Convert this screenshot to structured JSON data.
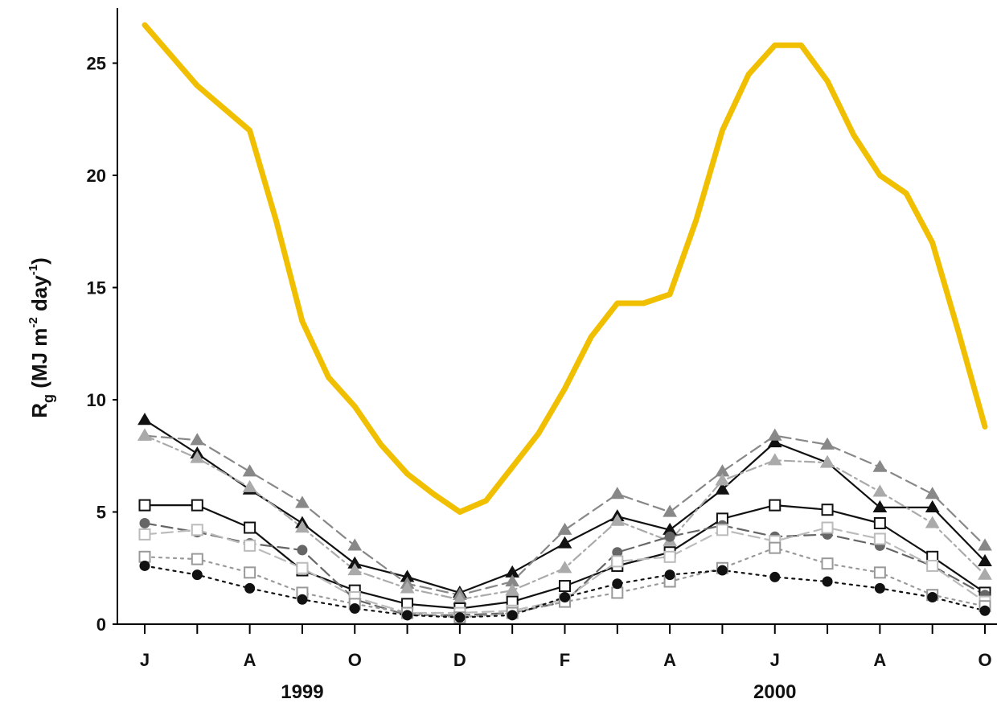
{
  "chart_data": {
    "type": "line",
    "ylabel": "Rg (MJ m-2 day-1)",
    "ylabel_parts": {
      "main": "R",
      "sub": "g",
      "a": " (MJ m",
      "sup1": "-2",
      "b": " day",
      "sup2": "-1",
      "c": ")"
    },
    "ylim": [
      0,
      27
    ],
    "yticks": [
      0,
      5,
      10,
      15,
      20,
      25
    ],
    "xlim": [
      0,
      16
    ],
    "x_tick_positions": [
      0,
      1,
      2,
      3,
      4,
      5,
      6,
      7,
      8,
      9,
      10,
      11,
      12,
      13,
      14,
      15,
      16
    ],
    "x_tick_labels": [
      {
        "x": 0,
        "label": "J"
      },
      {
        "x": 2,
        "label": "A"
      },
      {
        "x": 4,
        "label": "O"
      },
      {
        "x": 6,
        "label": "D"
      },
      {
        "x": 8,
        "label": "F"
      },
      {
        "x": 10,
        "label": "A"
      },
      {
        "x": 12,
        "label": "J"
      },
      {
        "x": 14,
        "label": "A"
      },
      {
        "x": 16,
        "label": "O"
      }
    ],
    "year_labels": [
      {
        "x": 3,
        "label": "1999"
      },
      {
        "x": 12,
        "label": "2000"
      }
    ],
    "grid": false,
    "legend": "none",
    "series": [
      {
        "style": "incident",
        "color": "#f0c000",
        "x": [
          0,
          1,
          2,
          2.5,
          3,
          3.5,
          4,
          4.5,
          5,
          5.5,
          6,
          6.5,
          7,
          7.5,
          8,
          8.5,
          9,
          9.5,
          10,
          10.5,
          11,
          11.5,
          12,
          12.5,
          13,
          13.5,
          14,
          14.5,
          15,
          15.5,
          16
        ],
        "values": [
          26.7,
          24.0,
          22.0,
          18.0,
          13.5,
          11.0,
          9.7,
          8.0,
          6.7,
          5.8,
          5.0,
          5.5,
          7.0,
          8.5,
          10.5,
          12.8,
          14.3,
          14.3,
          14.7,
          18.0,
          22.0,
          24.5,
          25.8,
          25.8,
          24.2,
          21.8,
          20.0,
          19.2,
          17.0,
          13.0,
          8.8
        ]
      },
      {
        "style": "solid",
        "color": "#111111",
        "marker": "triangle-filled",
        "x": [
          0,
          1,
          2,
          3,
          4,
          5,
          6,
          7,
          8,
          9,
          10,
          11,
          12,
          13,
          14,
          15,
          16
        ],
        "values": [
          9.1,
          7.6,
          6.0,
          4.5,
          2.7,
          2.1,
          1.4,
          2.3,
          3.6,
          4.8,
          4.2,
          6.0,
          8.1,
          7.2,
          5.2,
          5.2,
          2.8
        ]
      },
      {
        "style": "dashed",
        "color": "#888888",
        "marker": "triangle-gray",
        "x": [
          0,
          1,
          2,
          3,
          4,
          5,
          6,
          7,
          8,
          9,
          10,
          11,
          12,
          13,
          14,
          15,
          16
        ],
        "values": [
          8.4,
          8.2,
          6.8,
          5.4,
          3.5,
          1.8,
          1.3,
          1.9,
          4.2,
          5.8,
          5.0,
          6.8,
          8.4,
          8.0,
          7.0,
          5.8,
          3.5
        ]
      },
      {
        "style": "dashdot",
        "color": "#aaaaaa",
        "marker": "triangle-light",
        "x": [
          0,
          1,
          2,
          3,
          4,
          5,
          6,
          7,
          8,
          9,
          10,
          11,
          12,
          13,
          14,
          15,
          16
        ],
        "values": [
          8.4,
          7.4,
          6.1,
          4.3,
          2.4,
          1.6,
          1.1,
          1.5,
          2.5,
          4.6,
          3.7,
          6.4,
          7.3,
          7.2,
          5.9,
          4.5,
          2.2
        ]
      },
      {
        "style": "solid",
        "color": "#111111",
        "marker": "square-open",
        "x": [
          0,
          1,
          2,
          3,
          4,
          5,
          6,
          7,
          8,
          9,
          10,
          11,
          12,
          13,
          14,
          15,
          16
        ],
        "values": [
          5.3,
          5.3,
          4.3,
          2.4,
          1.5,
          0.9,
          0.7,
          1.0,
          1.7,
          2.6,
          3.2,
          4.7,
          5.3,
          5.1,
          4.5,
          3.0,
          1.4
        ]
      },
      {
        "style": "dashed",
        "color": "#666666",
        "marker": "circle-gray",
        "x": [
          0,
          1,
          2,
          3,
          4,
          5,
          6,
          7,
          8,
          9,
          10,
          11,
          12,
          13,
          14,
          15,
          16
        ],
        "values": [
          4.5,
          4.1,
          3.6,
          3.3,
          1.1,
          0.4,
          0.4,
          0.5,
          1.0,
          3.2,
          3.9,
          4.4,
          3.9,
          4.0,
          3.5,
          2.6,
          1.3
        ]
      },
      {
        "style": "dashed",
        "color": "#bbbbbb",
        "marker": "square-light",
        "x": [
          0,
          1,
          2,
          3,
          4,
          5,
          6,
          7,
          8,
          9,
          10,
          11,
          12,
          13,
          14,
          15,
          16
        ],
        "values": [
          4.0,
          4.2,
          3.5,
          2.5,
          1.2,
          0.5,
          0.5,
          0.6,
          1.1,
          2.8,
          3.0,
          4.2,
          3.7,
          4.3,
          3.8,
          2.6,
          1.0
        ]
      },
      {
        "style": "dotted",
        "color": "#999999",
        "marker": "square-open-gray",
        "x": [
          0,
          1,
          2,
          3,
          4,
          5,
          6,
          7,
          8,
          9,
          10,
          11,
          12,
          13,
          14,
          15,
          16
        ],
        "values": [
          3.0,
          2.9,
          2.3,
          1.4,
          0.9,
          0.5,
          0.3,
          0.5,
          1.0,
          1.4,
          1.9,
          2.5,
          3.4,
          2.7,
          2.3,
          1.3,
          0.8
        ]
      },
      {
        "style": "dotted",
        "color": "#111111",
        "marker": "circle-filled",
        "x": [
          0,
          1,
          2,
          3,
          4,
          5,
          6,
          7,
          8,
          9,
          10,
          11,
          12,
          13,
          14,
          15,
          16
        ],
        "values": [
          2.6,
          2.2,
          1.6,
          1.1,
          0.7,
          0.4,
          0.3,
          0.4,
          1.2,
          1.8,
          2.2,
          2.4,
          2.1,
          1.9,
          1.6,
          1.2,
          0.6
        ]
      }
    ]
  }
}
